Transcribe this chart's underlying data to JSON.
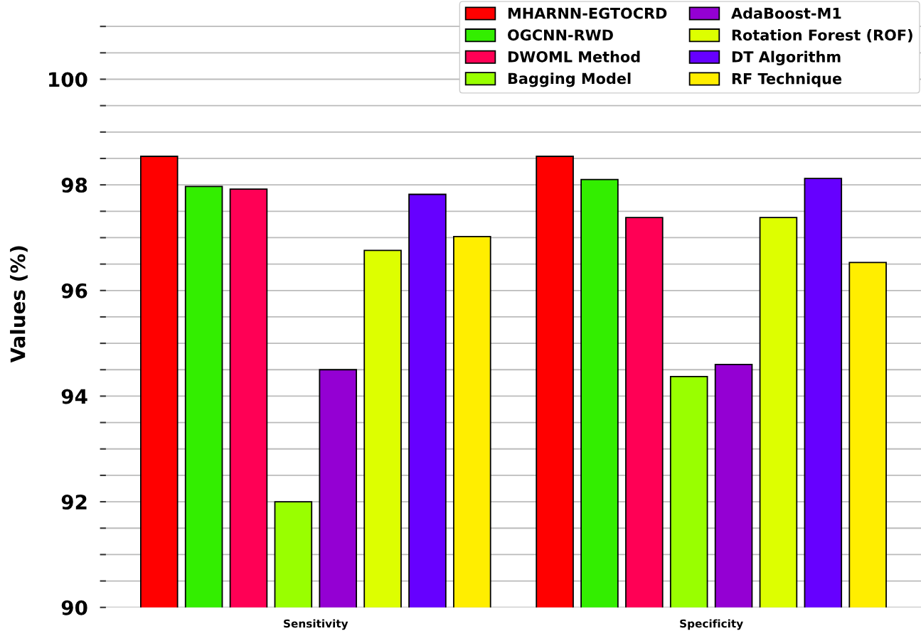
{
  "chart_data": {
    "type": "bar",
    "categories": [
      "Sensitivity",
      "Specificity"
    ],
    "ylabel": "Values (%)",
    "series": [
      {
        "name": "MHARNN-EGTOCRD",
        "color": "#ff0000",
        "values": [
          98.54,
          98.54
        ]
      },
      {
        "name": "OGCNN-RWD",
        "color": "#33ee00",
        "values": [
          97.97,
          98.1
        ]
      },
      {
        "name": "DWOML Method",
        "color": "#ff0055",
        "values": [
          97.92,
          97.38
        ]
      },
      {
        "name": "Bagging Model",
        "color": "#99ff00",
        "values": [
          92.0,
          94.37
        ]
      },
      {
        "name": "AdaBoost-M1",
        "color": "#9400d3",
        "values": [
          94.5,
          94.6
        ]
      },
      {
        "name": "Rotation Forest (ROF)",
        "color": "#ddff00",
        "values": [
          96.76,
          97.38
        ]
      },
      {
        "name": "DT Algorithm",
        "color": "#6600ff",
        "values": [
          97.82,
          98.12
        ]
      },
      {
        "name": "RF Technique",
        "color": "#ffee00",
        "values": [
          97.02,
          96.53
        ]
      }
    ],
    "ylim": [
      90,
      101.5
    ],
    "yticks": [
      90,
      {
        "value": 90.5,
        "label": null
      },
      {
        "value": 91,
        "label": null
      },
      {
        "value": 91.5,
        "label": null
      },
      92,
      {
        "value": 92.5,
        "label": null
      },
      {
        "value": 93,
        "label": null
      },
      {
        "value": 93.5,
        "label": null
      },
      94,
      {
        "value": 94.5,
        "label": null
      },
      {
        "value": 95,
        "label": null
      },
      {
        "value": 95.5,
        "label": null
      },
      96,
      {
        "value": 96.5,
        "label": null
      },
      {
        "value": 97,
        "label": null
      },
      {
        "value": 97.5,
        "label": null
      },
      98,
      {
        "value": 98.5,
        "label": null
      },
      {
        "value": 99,
        "label": null
      },
      {
        "value": 99.5,
        "label": null
      },
      100,
      {
        "value": 100.5,
        "label": null
      },
      {
        "value": 101,
        "label": null
      }
    ],
    "grid": "y",
    "legend": "top right"
  }
}
